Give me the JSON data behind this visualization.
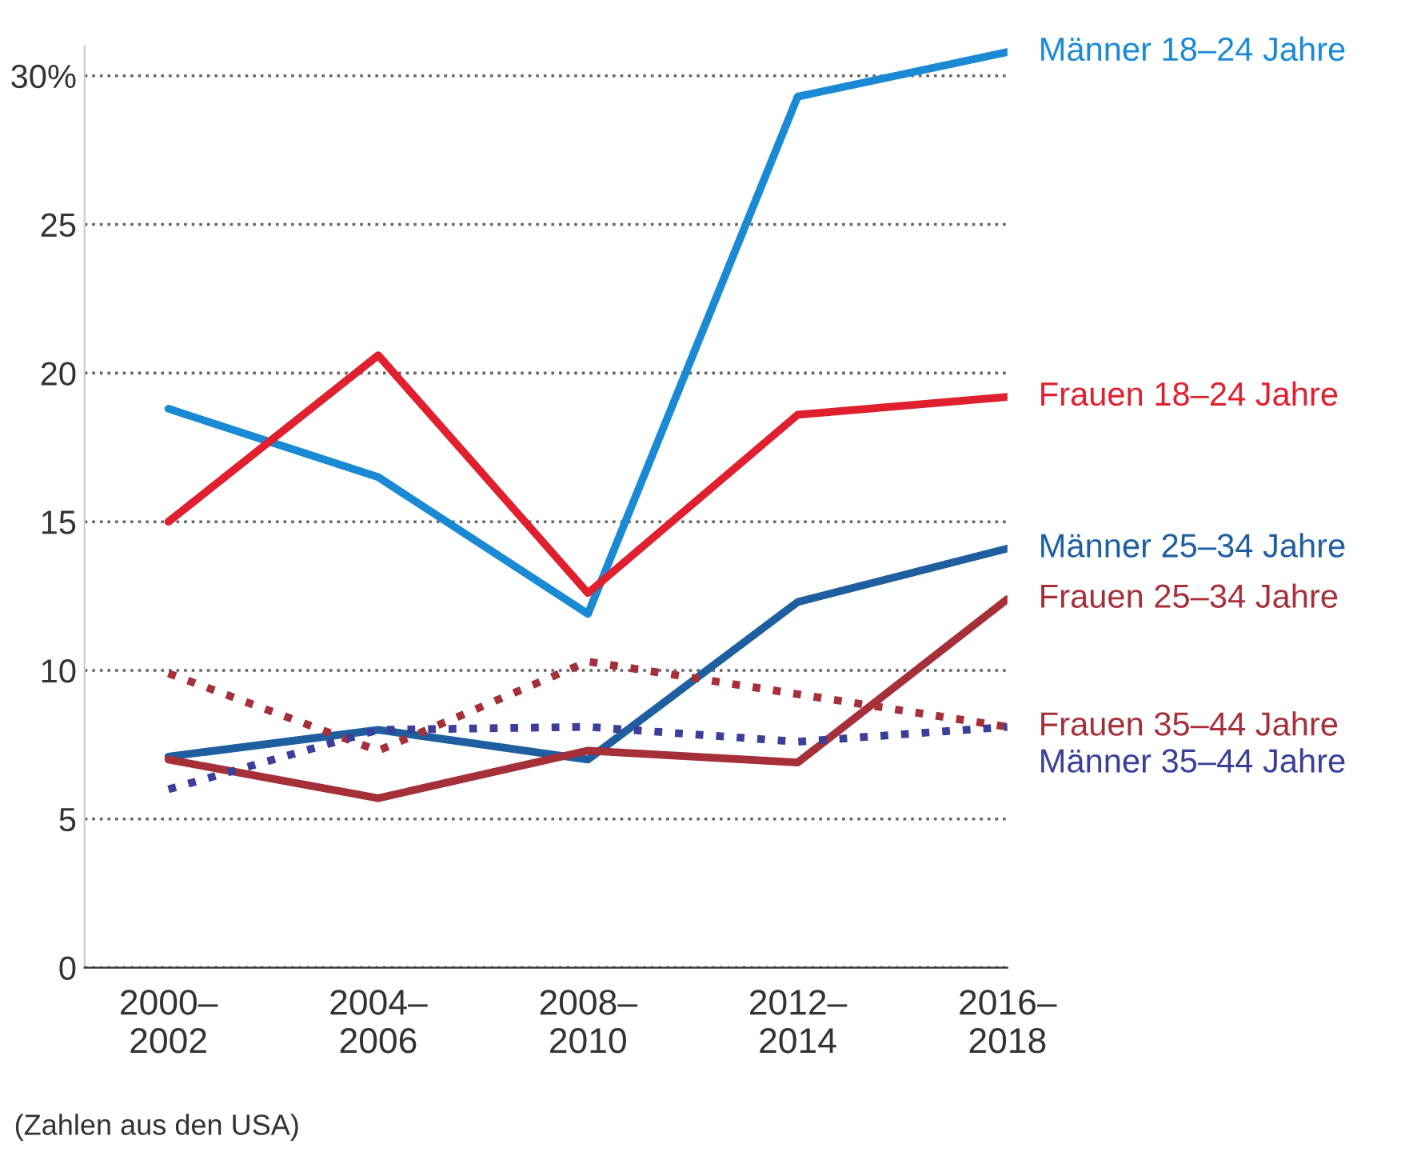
{
  "chart_data": {
    "type": "line",
    "categories": [
      "2000–\n2002",
      "2004–\n2006",
      "2008–\n2010",
      "2012–\n2014",
      "2016–\n2018"
    ],
    "ylim": [
      0,
      31
    ],
    "yticks": [
      0,
      5,
      10,
      15,
      20,
      {
        "value": 30,
        "label": "30%"
      },
      25
    ],
    "grid": "y",
    "legend": false,
    "series": [
      {
        "name": "Männer 18–24 Jahre",
        "color": "#1a8ad4",
        "values": [
          18.8,
          16.5,
          11.9,
          29.3,
          30.8
        ]
      },
      {
        "name": "Frauen 18–24 Jahre",
        "color": "#e0202e",
        "values": [
          15.0,
          20.6,
          12.6,
          18.6,
          19.2
        ]
      },
      {
        "name": "Männer 25–34 Jahre",
        "color": "#1f5fa0",
        "values": [
          7.1,
          8.0,
          7.0,
          12.3,
          14.1
        ]
      },
      {
        "name": "Frauen 25–34 Jahre",
        "color": "#a6303a",
        "values": [
          7.0,
          5.7,
          7.3,
          6.9,
          12.4
        ]
      },
      {
        "name": "Frauen 35–44 Jahre",
        "color": "#a6303a",
        "line_style": "dotted",
        "values": [
          9.9,
          7.3,
          10.3,
          9.2,
          8.1
        ]
      },
      {
        "name": "Männer 35–44 Jahre",
        "color": "#3a3f99",
        "line_style": "dotted",
        "values": [
          6.0,
          8.0,
          8.1,
          7.6,
          8.1
        ]
      }
    ],
    "annotations": [
      "(Zahlen aus den USA)"
    ]
  }
}
